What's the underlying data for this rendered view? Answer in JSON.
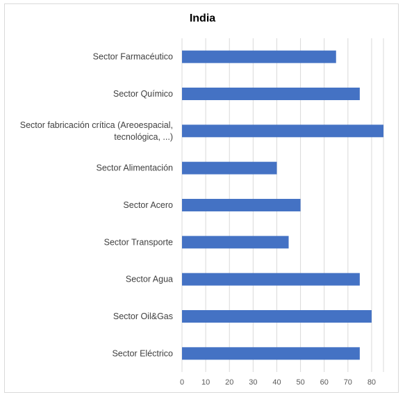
{
  "chart_data": {
    "type": "bar",
    "orientation": "horizontal",
    "title": "India",
    "xlabel": "",
    "ylabel": "",
    "categories": [
      "Sector Farmacéutico",
      "Sector Químico",
      "Sector fabricación crítica (Areoespacial, tecnológica, ...)",
      "Sector Alimentación",
      "Sector Acero",
      "Sector Transporte",
      "Sector Agua",
      "Sector Oil&Gas",
      "Sector Eléctrico"
    ],
    "category_lines": [
      [
        "Sector Farmacéutico"
      ],
      [
        "Sector Químico"
      ],
      [
        "Sector fabricación crítica (Areoespacial,",
        "tecnológica, ...)"
      ],
      [
        "Sector Alimentación"
      ],
      [
        "Sector Acero"
      ],
      [
        "Sector Transporte"
      ],
      [
        "Sector Agua"
      ],
      [
        "Sector Oil&Gas"
      ],
      [
        "Sector Eléctrico"
      ]
    ],
    "values": [
      65,
      75,
      85,
      40,
      50,
      45,
      75,
      80,
      75
    ],
    "xlim": [
      0,
      85
    ],
    "xticks": [
      0,
      10,
      20,
      30,
      40,
      50,
      60,
      70,
      80
    ],
    "grid": true,
    "legend": "none",
    "bar_color": "#4472c4",
    "grid_color": "#d9d9d9"
  }
}
